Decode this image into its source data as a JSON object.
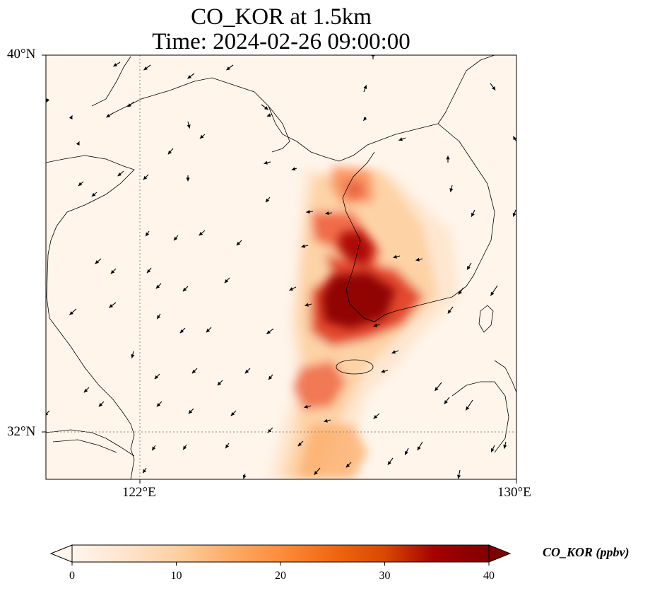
{
  "title_line1": "CO_KOR at 1.5km",
  "title_line2": "Time: 2024-02-26 09:00:00",
  "map": {
    "lon_range": [
      120,
      130
    ],
    "lat_range": [
      31,
      40
    ],
    "x_ticks": [
      {
        "value": 122,
        "label": "122°E"
      },
      {
        "value": 130,
        "label": "130°E"
      }
    ],
    "y_ticks": [
      {
        "value": 40,
        "label": "40°N"
      },
      {
        "value": 32,
        "label": "32°N"
      }
    ],
    "gridlines": "dotted",
    "background_color": "#fff5eb",
    "coastline_color": "#000000"
  },
  "colorbar": {
    "label": "CO_KOR (ppbv)",
    "colormap": "OrRd",
    "range": [
      0,
      40
    ],
    "extend": "both",
    "ticks": [
      "0",
      "10",
      "20",
      "30",
      "40"
    ],
    "colors": [
      "#fff5eb",
      "#fee6ce",
      "#fdd0a2",
      "#fdae6b",
      "#fd8d3c",
      "#f16913",
      "#d94801",
      "#a60000",
      "#7f0000"
    ]
  }
}
